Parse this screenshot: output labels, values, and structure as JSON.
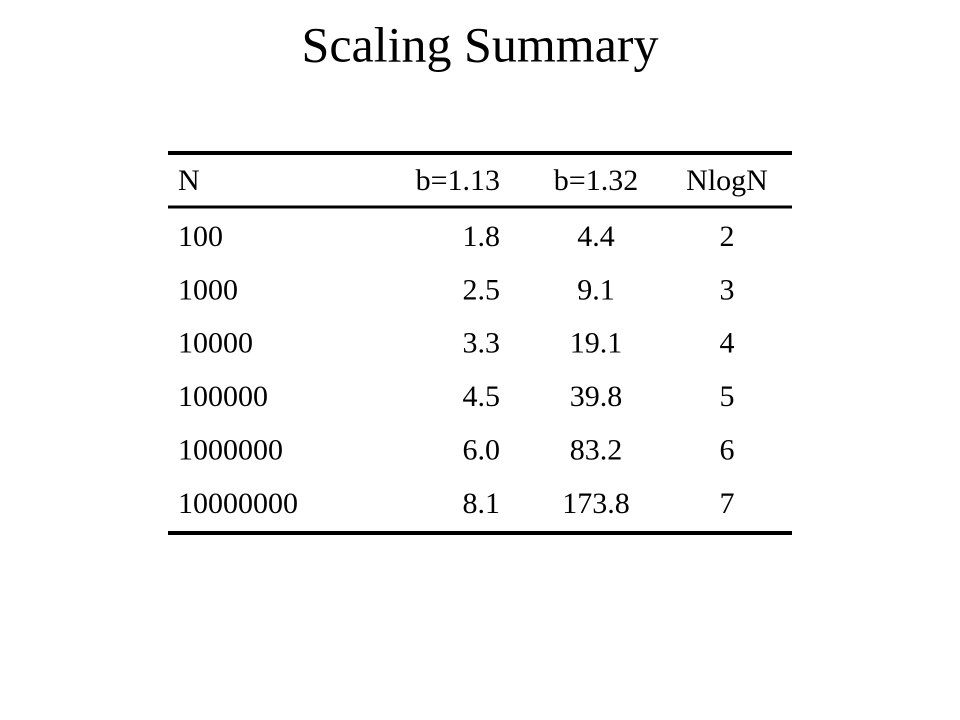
{
  "title": "Scaling Summary",
  "table": {
    "header": [
      "N",
      "b=1.13",
      "b=1.32",
      "NlogN"
    ],
    "rows": [
      [
        "100",
        "1.8",
        "4.4",
        "2"
      ],
      [
        "1000",
        "2.5",
        "9.1",
        "3"
      ],
      [
        "10000",
        "3.3",
        "19.1",
        "4"
      ],
      [
        "100000",
        "4.5",
        "39.8",
        "5"
      ],
      [
        "1000000",
        "6.0",
        "83.2",
        "6"
      ],
      [
        "10000000",
        "8.1",
        "173.8",
        "7"
      ]
    ]
  }
}
